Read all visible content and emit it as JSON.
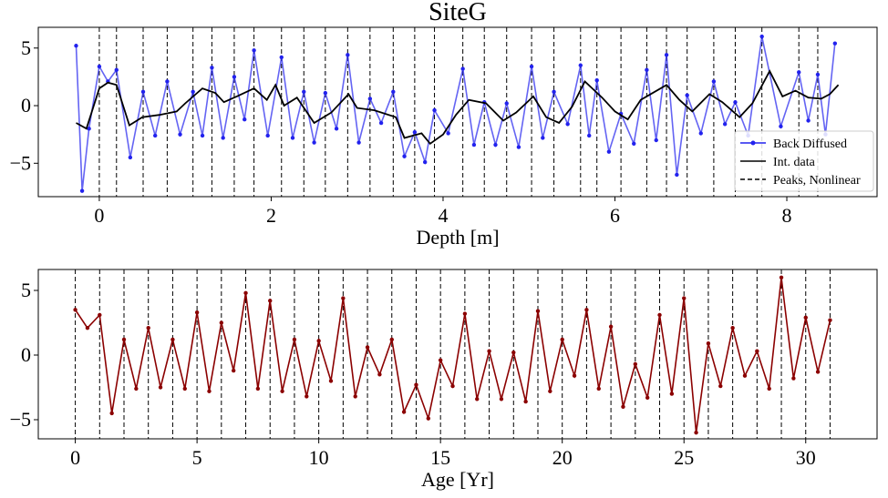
{
  "chart_data": [
    {
      "type": "line",
      "title": "SiteG",
      "xlabel": "Depth [m]",
      "xlim": [
        -0.71,
        9.05
      ],
      "ylim": [
        -7.9,
        6.8
      ],
      "xticks": [
        0,
        2,
        4,
        6,
        8
      ],
      "yticks": [
        {
          "value": -5,
          "label": "−5"
        },
        0,
        5
      ],
      "legend": "lower right",
      "series": [
        {
          "name": "Back Diffused",
          "color": "#2222ee",
          "marker": true,
          "x": [
            -0.27,
            -0.2,
            -0.12,
            0,
            0.1,
            0.2,
            0.36,
            0.51,
            0.65,
            0.79,
            0.94,
            1.09,
            1.2,
            1.31,
            1.44,
            1.57,
            1.69,
            1.8,
            1.96,
            2.12,
            2.25,
            2.38,
            2.5,
            2.63,
            2.76,
            2.89,
            3.02,
            3.15,
            3.28,
            3.42,
            3.55,
            3.67,
            3.79,
            3.9,
            4.06,
            4.23,
            4.36,
            4.48,
            4.61,
            4.74,
            4.88,
            5.03,
            5.16,
            5.29,
            5.45,
            5.6,
            5.7,
            5.79,
            5.93,
            6.07,
            6.22,
            6.37,
            6.48,
            6.6,
            6.72,
            6.84,
            7.0,
            7.15,
            7.28,
            7.4,
            7.55,
            7.71,
            7.93,
            8.14,
            8.25,
            8.36,
            8.45,
            8.56
          ],
          "values": [
            5.2,
            -7.4,
            -2.0,
            3.4,
            2.1,
            3.1,
            -4.5,
            1.2,
            -2.6,
            2.1,
            -2.5,
            1.2,
            -2.6,
            3.3,
            -2.8,
            2.5,
            -1.2,
            4.8,
            -2.6,
            4.2,
            -2.8,
            1.2,
            -3.2,
            1.1,
            -2.0,
            4.4,
            -3.2,
            0.6,
            -1.5,
            1.2,
            -4.4,
            -2.3,
            -4.9,
            -0.4,
            -2.4,
            3.2,
            -3.4,
            0.3,
            -3.4,
            0.2,
            -3.6,
            3.4,
            -2.8,
            1.2,
            -1.6,
            3.5,
            -2.6,
            2.2,
            -4.0,
            -0.7,
            -3.3,
            3.1,
            -3.0,
            4.4,
            -6.0,
            0.9,
            -2.4,
            2.1,
            -1.6,
            0.3,
            -2.6,
            6.0,
            -1.8,
            2.9,
            -1.3,
            2.7,
            -2.5,
            5.4
          ]
        },
        {
          "name": "Int. data",
          "color": "#000000",
          "marker": false,
          "x": [
            -0.27,
            -0.15,
            0,
            0.1,
            0.2,
            0.35,
            0.5,
            0.7,
            0.9,
            1.0,
            1.2,
            1.35,
            1.45,
            1.6,
            1.8,
            1.95,
            2.05,
            2.15,
            2.3,
            2.5,
            2.7,
            2.9,
            3.0,
            3.2,
            3.45,
            3.55,
            3.75,
            3.85,
            4.0,
            4.15,
            4.3,
            4.5,
            4.7,
            4.85,
            5.05,
            5.2,
            5.35,
            5.5,
            5.65,
            5.85,
            6.0,
            6.15,
            6.3,
            6.6,
            6.75,
            6.9,
            7.1,
            7.25,
            7.45,
            7.6,
            7.8,
            7.95,
            8.1,
            8.25,
            8.4,
            8.5,
            8.6
          ],
          "values": [
            -1.5,
            -2.0,
            1.5,
            2.0,
            1.8,
            -1.7,
            -1.0,
            -0.8,
            -0.5,
            0.2,
            1.5,
            1.1,
            0.3,
            0.8,
            1.5,
            0.5,
            1.8,
            0.0,
            0.7,
            -1.5,
            -0.6,
            1.0,
            -0.2,
            -0.4,
            -1.0,
            -2.8,
            -2.4,
            -3.3,
            -2.5,
            -0.8,
            0.5,
            0.2,
            -1.3,
            -0.6,
            0.8,
            -1.0,
            -1.5,
            -0.1,
            2.1,
            0.7,
            -0.5,
            -1.2,
            0.5,
            1.8,
            0.5,
            -0.5,
            1.0,
            0.3,
            -1.0,
            0.2,
            3.0,
            0.8,
            1.3,
            0.7,
            0.6,
            1.0,
            1.8
          ]
        }
      ],
      "peaks": {
        "name": "Peaks, Nonlinear",
        "color": "#000000",
        "values": [
          0,
          0.2,
          0.51,
          0.79,
          1.09,
          1.31,
          1.57,
          1.8,
          2.12,
          2.38,
          2.63,
          2.89,
          3.15,
          3.42,
          3.67,
          3.9,
          4.23,
          4.48,
          4.74,
          5.03,
          5.29,
          5.6,
          5.79,
          6.07,
          6.37,
          6.6,
          6.84,
          7.15,
          7.4,
          7.71,
          8.14,
          8.36
        ]
      }
    },
    {
      "type": "line",
      "xlabel": "Age [Yr]",
      "xlim": [
        -1.52,
        32.93
      ],
      "ylim": [
        -6.48,
        6.62
      ],
      "xticks": [
        0,
        5,
        10,
        15,
        20,
        25,
        30
      ],
      "yticks": [
        {
          "value": -5,
          "label": "−5"
        },
        0,
        5
      ],
      "series": [
        {
          "color": "#8b0000",
          "marker": true,
          "x": [
            0,
            0.5,
            1,
            1.5,
            2,
            2.5,
            3,
            3.5,
            4,
            4.5,
            5,
            5.5,
            6,
            6.5,
            7,
            7.5,
            8,
            8.5,
            9,
            9.5,
            10,
            10.5,
            11,
            11.5,
            12,
            12.5,
            13,
            13.5,
            14,
            14.5,
            15,
            15.5,
            16,
            16.5,
            17,
            17.5,
            18,
            18.5,
            19,
            19.5,
            20,
            20.5,
            21,
            21.5,
            22,
            22.5,
            23,
            23.5,
            24,
            24.5,
            25,
            25.5,
            26,
            26.5,
            27,
            27.5,
            28,
            28.5,
            29,
            29.5,
            30,
            30.5,
            31
          ],
          "values": [
            3.5,
            2.1,
            3.1,
            -4.5,
            1.2,
            -2.6,
            2.1,
            -2.5,
            1.2,
            -2.6,
            3.3,
            -2.8,
            2.5,
            -1.2,
            4.8,
            -2.6,
            4.2,
            -2.8,
            1.2,
            -3.2,
            1.1,
            -2.0,
            4.4,
            -3.2,
            0.6,
            -1.5,
            1.2,
            -4.4,
            -2.3,
            -4.9,
            -0.4,
            -2.4,
            3.2,
            -3.4,
            0.3,
            -3.4,
            0.2,
            -3.6,
            3.4,
            -2.8,
            1.2,
            -1.6,
            3.5,
            -2.6,
            2.2,
            -4.0,
            -0.7,
            -3.3,
            3.1,
            -3.0,
            4.4,
            -6.0,
            0.9,
            -2.4,
            2.1,
            -1.6,
            0.3,
            -2.6,
            6.0,
            -1.8,
            2.9,
            -1.3,
            2.7
          ]
        }
      ],
      "peaks": {
        "color": "#000000",
        "values": [
          0,
          1,
          2,
          3,
          4,
          5,
          6,
          7,
          8,
          9,
          10,
          11,
          12,
          13,
          14,
          15,
          16,
          17,
          18,
          19,
          20,
          21,
          22,
          23,
          24,
          25,
          26,
          27,
          28,
          29,
          30,
          31
        ]
      }
    }
  ]
}
